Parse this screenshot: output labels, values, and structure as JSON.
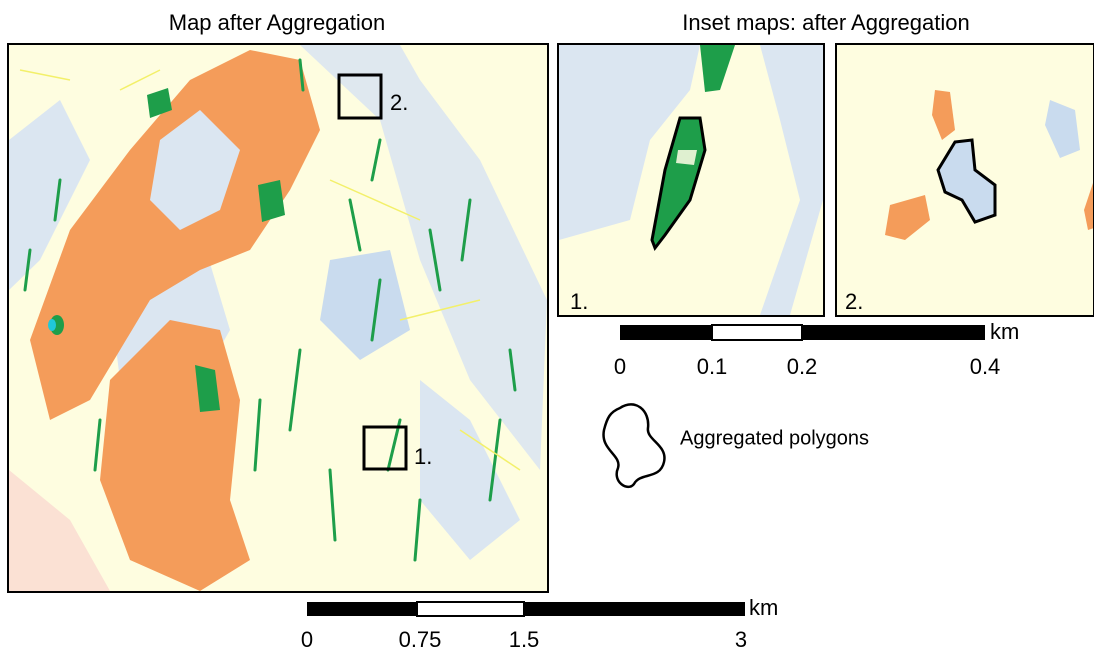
{
  "main_map": {
    "title": "Map after Aggregation",
    "inset_markers": [
      "1.",
      "2."
    ]
  },
  "inset_maps": {
    "title": "Inset maps: after Aggregation",
    "panels": [
      "1.",
      "2."
    ]
  },
  "scale_bars": {
    "main": {
      "labels": [
        "0",
        "0.75",
        "1.5",
        "3"
      ],
      "unit": "km"
    },
    "inset": {
      "labels": [
        "0",
        "0.1",
        "0.2",
        "0.4"
      ],
      "unit": "km"
    }
  },
  "legend": {
    "label": "Aggregated polygons"
  }
}
